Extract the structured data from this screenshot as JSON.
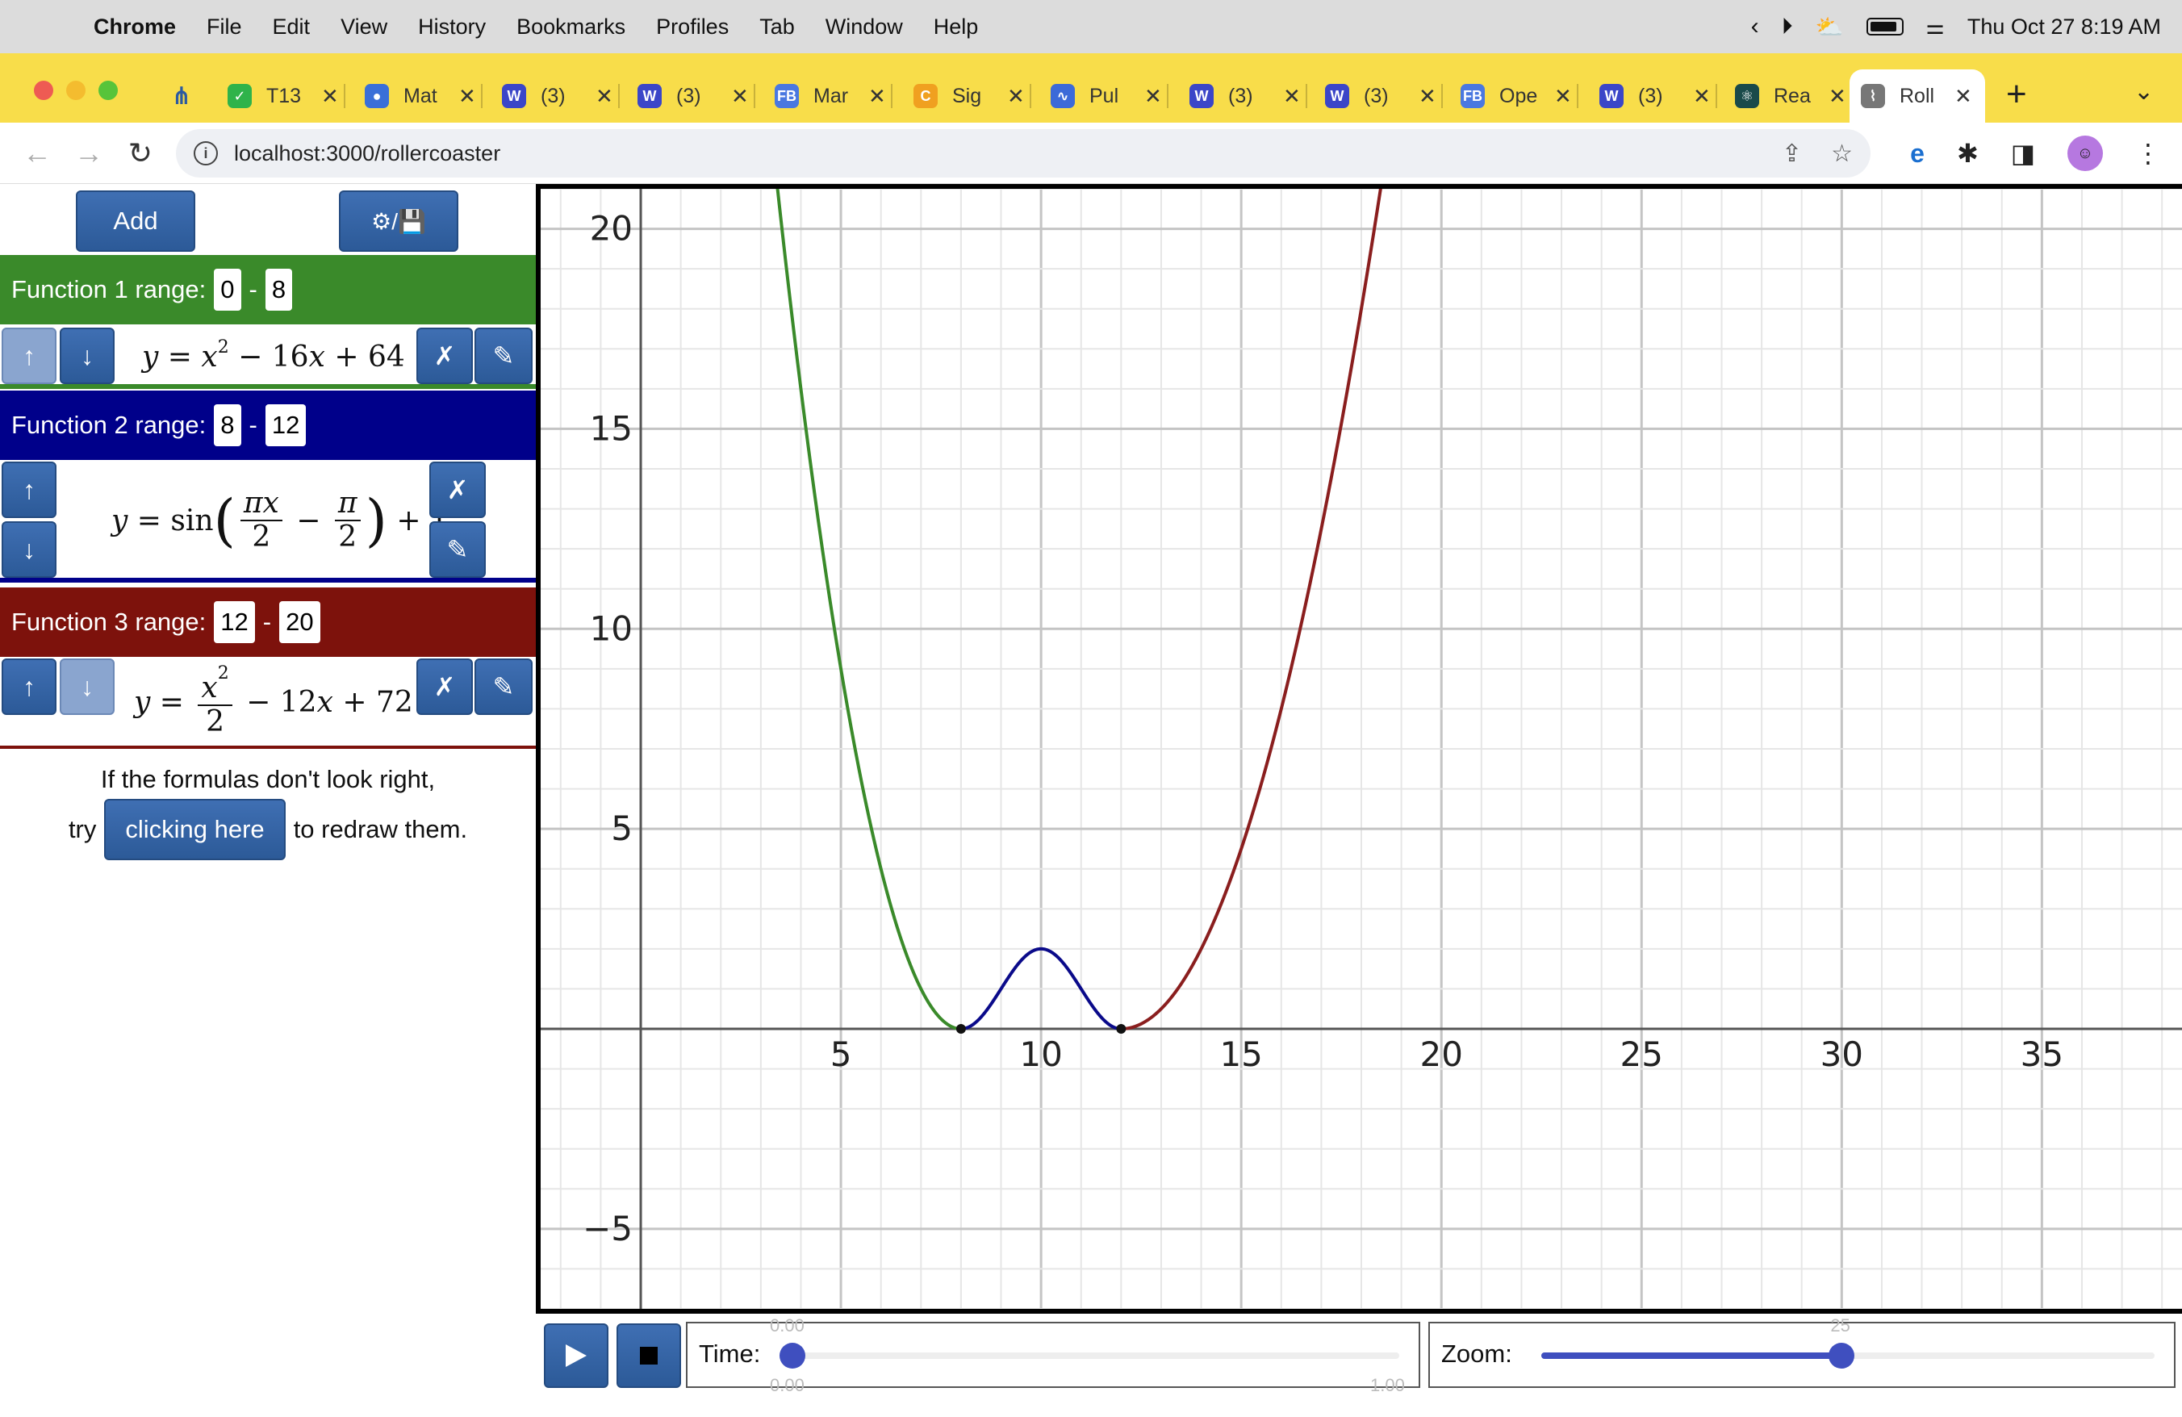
{
  "menubar": {
    "app": "Chrome",
    "items": [
      "File",
      "Edit",
      "View",
      "History",
      "Bookmarks",
      "Profiles",
      "Tab",
      "Window",
      "Help"
    ],
    "datetime": "Thu Oct 27  8:19 AM"
  },
  "tabs": [
    {
      "label": "",
      "icon": "sitemap-icon",
      "color": "#2c5aa0"
    },
    {
      "label": "T13",
      "icon": "check-icon",
      "color": "#2fb34a"
    },
    {
      "label": "Mat",
      "icon": "person-icon",
      "color": "#3a6fd8"
    },
    {
      "label": "(3)",
      "icon": "w-icon",
      "color": "#3b46c8"
    },
    {
      "label": "(3)",
      "icon": "w-icon",
      "color": "#3b46c8"
    },
    {
      "label": "Mar",
      "icon": "fb-icon",
      "color": "#4a78e0"
    },
    {
      "label": "Sig",
      "icon": "c-icon",
      "color": "#f0a020"
    },
    {
      "label": "Pul",
      "icon": "pulse-icon",
      "color": "#3c6ad8"
    },
    {
      "label": "(3)",
      "icon": "w-icon",
      "color": "#3b46c8"
    },
    {
      "label": "(3)",
      "icon": "w-icon",
      "color": "#3b46c8"
    },
    {
      "label": "Ope",
      "icon": "fb-icon",
      "color": "#4a78e0"
    },
    {
      "label": "(3)",
      "icon": "w-icon",
      "color": "#3b46c8"
    },
    {
      "label": "Rea",
      "icon": "react-icon",
      "color": "#1a4a4a"
    },
    {
      "label": "Roll",
      "icon": "graph-icon",
      "color": "#777777",
      "active": true
    }
  ],
  "address": {
    "url": "localhost:3000/rollercoaster"
  },
  "panel": {
    "add_label": "Add",
    "settings_label": "⚙/💾",
    "functions": [
      {
        "header": "Function 1 range:",
        "from": "0",
        "to": "8",
        "color": "#3a8a2a"
      },
      {
        "header": "Function 2 range:",
        "from": "8",
        "to": "12",
        "color": "#00008a"
      },
      {
        "header": "Function 3 range:",
        "from": "12",
        "to": "20",
        "color": "#7d120c"
      }
    ],
    "up_arrow": "↑",
    "down_arrow": "↓",
    "delete_glyph": "✗",
    "edit_glyph": "✎",
    "note_line1": "If the formulas don't look right,",
    "note_try": "try",
    "note_button": "clicking here",
    "note_rest": "to redraw them."
  },
  "chart_data": {
    "type": "line",
    "x_ticks": [
      5,
      10,
      15,
      20,
      25,
      30,
      35
    ],
    "y_ticks": [
      -5,
      5,
      10,
      15,
      20
    ],
    "xlim": [
      -2.5,
      38.5
    ],
    "ylim": [
      -7,
      21
    ],
    "grid": true,
    "series": [
      {
        "formula": "x^2-16x+64",
        "range": [
          0,
          8
        ],
        "color": "#3a8a2a"
      },
      {
        "formula": "sin(pi*x/2 - pi/2)+1",
        "range": [
          8,
          12
        ],
        "color": "#0a0a8a"
      },
      {
        "formula": "x^2/2-12x+72",
        "range": [
          12,
          20
        ],
        "color": "#8a1e1e"
      }
    ],
    "points": [
      {
        "x": 8,
        "y": 0
      },
      {
        "x": 12,
        "y": 0
      }
    ]
  },
  "controls": {
    "time_label": "Time:",
    "time_value": 0,
    "time_min_label": "0.00",
    "time_top_label": "0.00",
    "time_max_label": "1.00",
    "zoom_label": "Zoom:",
    "zoom_value_label": "25",
    "zoom_fraction": 0.49
  }
}
